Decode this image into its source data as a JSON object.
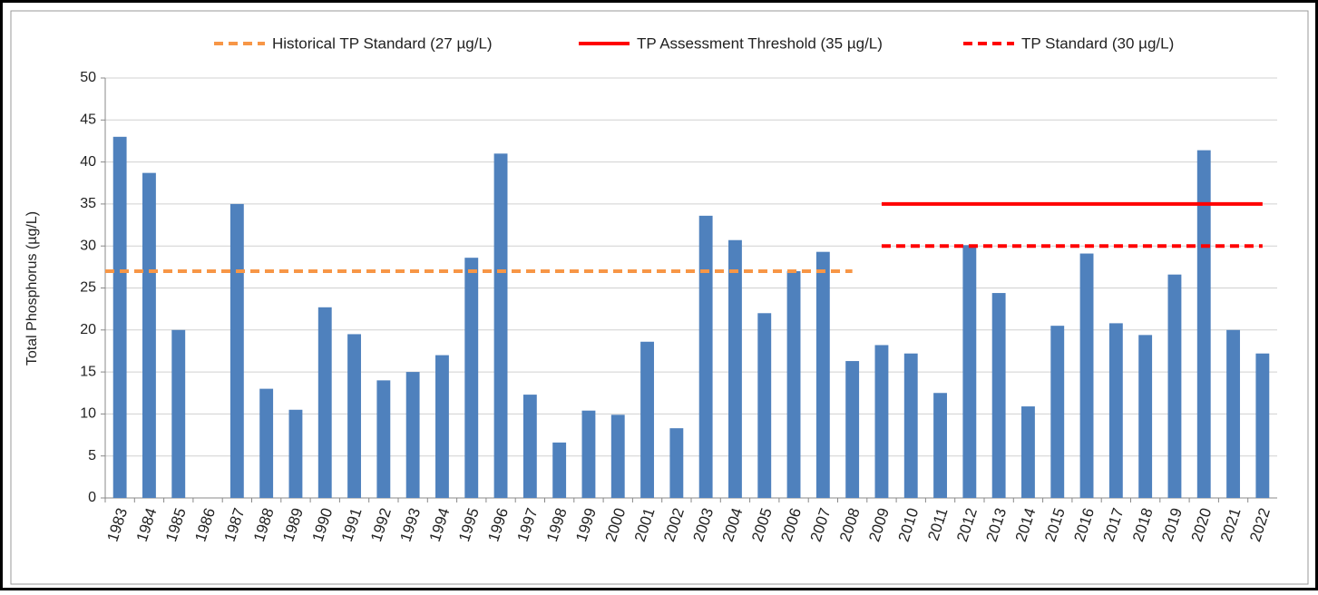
{
  "chart_data": {
    "type": "bar",
    "y_label": "Total Phosphorus (µg/L)",
    "categories": [
      "1983",
      "1984",
      "1985",
      "1986",
      "1987",
      "1988",
      "1989",
      "1990",
      "1991",
      "1992",
      "1993",
      "1994",
      "1995",
      "1996",
      "1997",
      "1998",
      "1999",
      "2000",
      "2001",
      "2002",
      "2003",
      "2004",
      "2005",
      "2006",
      "2007",
      "2008",
      "2009",
      "2010",
      "2011",
      "2012",
      "2013",
      "2014",
      "2015",
      "2016",
      "2017",
      "2018",
      "2019",
      "2020",
      "2021",
      "2022"
    ],
    "values": [
      43.0,
      38.7,
      20.0,
      null,
      35.0,
      13.0,
      10.5,
      22.7,
      19.5,
      14.0,
      15.0,
      17.0,
      28.6,
      41.0,
      12.3,
      6.6,
      10.4,
      9.9,
      18.6,
      8.3,
      33.6,
      30.7,
      22.0,
      27.0,
      29.3,
      16.3,
      18.2,
      17.2,
      12.5,
      30.1,
      24.4,
      10.9,
      20.5,
      29.1,
      20.8,
      19.4,
      26.6,
      41.4,
      20.0,
      17.2
    ],
    "color": "#4f81bd",
    "ylim": [
      0,
      50
    ],
    "yticks": [
      0,
      5,
      10,
      15,
      20,
      25,
      30,
      35,
      40,
      45,
      50
    ],
    "grid": true,
    "reference_lines": [
      {
        "name": "Historical TP Standard (27 µg/L)",
        "value": 27,
        "color": "#f79646",
        "style": "dashed",
        "from": "1983",
        "to": "2008"
      },
      {
        "name": "TP Assessment Threshold (35 µg/L)",
        "value": 35,
        "color": "#ff0000",
        "style": "solid",
        "from": "2009",
        "to": "2022"
      },
      {
        "name": "TP Standard (30 µg/L)",
        "value": 30,
        "color": "#ff0000",
        "style": "dashed",
        "from": "2009",
        "to": "2022"
      }
    ]
  }
}
